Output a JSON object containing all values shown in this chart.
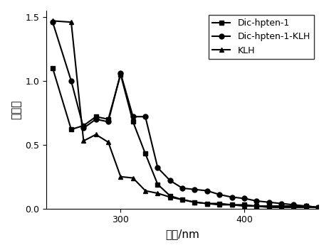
{
  "title": "",
  "xlabel": "波长/nm",
  "ylabel": "吸光值",
  "xlim": [
    240,
    460
  ],
  "ylim": [
    0.0,
    1.55
  ],
  "yticks": [
    0.0,
    0.5,
    1.0,
    1.5
  ],
  "xticks": [
    300,
    400
  ],
  "series": [
    {
      "label": "Dic-hpten-1",
      "marker": "s",
      "color": "#000000",
      "x": [
        245,
        260,
        270,
        280,
        290,
        300,
        310,
        320,
        330,
        340,
        350,
        360,
        370,
        380,
        390,
        400,
        410,
        420,
        430,
        440,
        450,
        460
      ],
      "y": [
        1.1,
        0.62,
        0.65,
        0.72,
        0.7,
        1.05,
        0.68,
        0.43,
        0.19,
        0.1,
        0.07,
        0.05,
        0.04,
        0.04,
        0.03,
        0.03,
        0.02,
        0.02,
        0.02,
        0.02,
        0.02,
        0.01
      ]
    },
    {
      "label": "Dic-hpten-1-KLH",
      "marker": "o",
      "color": "#000000",
      "x": [
        245,
        260,
        270,
        280,
        290,
        300,
        310,
        320,
        330,
        340,
        350,
        360,
        370,
        380,
        390,
        400,
        410,
        420,
        430,
        440,
        450,
        460
      ],
      "y": [
        1.46,
        1.0,
        0.63,
        0.7,
        0.68,
        1.06,
        0.72,
        0.72,
        0.32,
        0.22,
        0.16,
        0.15,
        0.14,
        0.11,
        0.09,
        0.08,
        0.06,
        0.05,
        0.04,
        0.03,
        0.02,
        0.01
      ]
    },
    {
      "label": "KLH",
      "marker": "^",
      "color": "#000000",
      "x": [
        245,
        260,
        270,
        280,
        290,
        300,
        310,
        320,
        330,
        340,
        350,
        360,
        370,
        380,
        390,
        400,
        410,
        420,
        430,
        440,
        450,
        460
      ],
      "y": [
        1.47,
        1.46,
        0.53,
        0.58,
        0.52,
        0.25,
        0.24,
        0.14,
        0.12,
        0.09,
        0.07,
        0.05,
        0.04,
        0.03,
        0.03,
        0.02,
        0.02,
        0.01,
        0.01,
        0.01,
        0.01,
        0.01
      ]
    }
  ],
  "legend_fontsize": 9,
  "axis_fontsize": 11,
  "tick_fontsize": 9,
  "linewidth": 1.5,
  "markersize": 5
}
